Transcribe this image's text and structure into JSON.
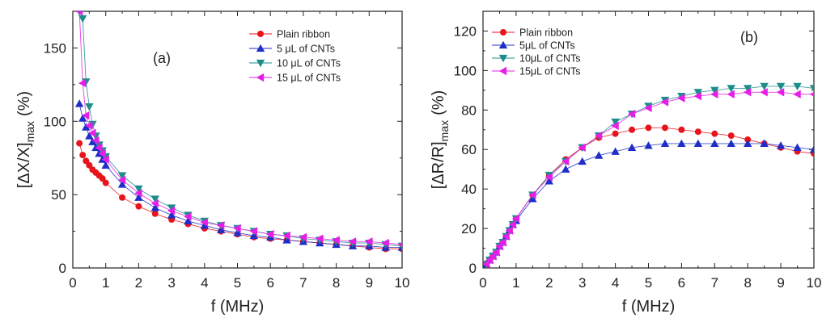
{
  "chart_data": [
    {
      "type": "scatter",
      "panel_label": "(a)",
      "xlabel": "f (MHz)",
      "ylabel_main": "[ΔX/X]",
      "ylabel_sub": "max",
      "ylabel_unit": "(%)",
      "xlim": [
        0,
        10
      ],
      "ylim": [
        0,
        175
      ],
      "xticks": [
        0,
        1,
        2,
        3,
        4,
        5,
        6,
        7,
        8,
        9,
        10
      ],
      "yticks": [
        0,
        50,
        100,
        150
      ],
      "grid": false,
      "legend_position": "top-right",
      "series": [
        {
          "name": "Plain ribbon",
          "marker": "circle",
          "color": "#e8141c",
          "x": [
            0.2,
            0.3,
            0.4,
            0.5,
            0.6,
            0.7,
            0.8,
            0.9,
            1.0,
            1.5,
            2.0,
            2.5,
            3.0,
            3.5,
            4.0,
            4.5,
            5.0,
            5.5,
            6.0,
            6.5,
            7.0,
            7.5,
            8.0,
            8.5,
            9.0,
            9.5,
            10.0
          ],
          "y": [
            85,
            77,
            73,
            70,
            67,
            65,
            63,
            61,
            58,
            48,
            42,
            37,
            33,
            30,
            27,
            25,
            23,
            21,
            20,
            19,
            18,
            17,
            16,
            15,
            14,
            13,
            13
          ]
        },
        {
          "name": "5 μL of CNTs",
          "marker": "triangle-up",
          "color": "#1f2ec8",
          "x": [
            0.2,
            0.3,
            0.4,
            0.5,
            0.6,
            0.7,
            0.8,
            0.9,
            1.0,
            1.5,
            2.0,
            2.5,
            3.0,
            3.5,
            4.0,
            4.5,
            5.0,
            5.5,
            6.0,
            6.5,
            7.0,
            7.5,
            8.0,
            8.5,
            9.0,
            9.5,
            10.0
          ],
          "y": [
            112,
            102,
            96,
            90,
            86,
            82,
            78,
            74,
            70,
            57,
            48,
            41,
            36,
            32,
            29,
            26,
            24,
            22,
            21,
            19,
            18,
            17,
            16,
            15,
            15,
            14,
            14
          ]
        },
        {
          "name": "10 μL of CNTs",
          "marker": "triangle-down",
          "color": "#1f8c8c",
          "x": [
            0.2,
            0.3,
            0.4,
            0.5,
            0.6,
            0.7,
            0.8,
            0.9,
            1.0,
            1.5,
            2.0,
            2.5,
            3.0,
            3.5,
            4.0,
            4.5,
            5.0,
            5.5,
            6.0,
            6.5,
            7.0,
            7.5,
            8.0,
            8.5,
            9.0,
            9.5,
            10.0
          ],
          "y": [
            175,
            170,
            127,
            110,
            98,
            90,
            84,
            80,
            76,
            63,
            54,
            47,
            41,
            36,
            32,
            29,
            27,
            25,
            23,
            22,
            20,
            19,
            18,
            17,
            17,
            16,
            15
          ]
        },
        {
          "name": "15 μL of CNTs",
          "marker": "triangle-left",
          "color": "#e61ee6",
          "x": [
            0.2,
            0.3,
            0.4,
            0.5,
            0.6,
            0.7,
            0.8,
            0.9,
            1.0,
            1.5,
            2.0,
            2.5,
            3.0,
            3.5,
            4.0,
            4.5,
            5.0,
            5.5,
            6.0,
            6.5,
            7.0,
            7.5,
            8.0,
            8.5,
            9.0,
            9.5,
            10.0
          ],
          "y": [
            175,
            126,
            104,
            97,
            92,
            87,
            82,
            78,
            74,
            60,
            51,
            44,
            39,
            35,
            31,
            29,
            27,
            25,
            23,
            22,
            21,
            20,
            19,
            18,
            18,
            17,
            16
          ]
        }
      ]
    },
    {
      "type": "scatter",
      "panel_label": "(b)",
      "xlabel": "f (MHz)",
      "ylabel_main": "[ΔR/R]",
      "ylabel_sub": "max",
      "ylabel_unit": "(%)",
      "xlim": [
        0,
        10
      ],
      "ylim": [
        0,
        130
      ],
      "xticks": [
        0,
        1,
        2,
        3,
        4,
        5,
        6,
        7,
        8,
        9,
        10
      ],
      "yticks": [
        0,
        20,
        40,
        60,
        80,
        100,
        120
      ],
      "grid": false,
      "legend_position": "top-left",
      "series": [
        {
          "name": "Plain ribbon",
          "marker": "circle",
          "color": "#e8141c",
          "x": [
            0.1,
            0.2,
            0.3,
            0.4,
            0.5,
            0.6,
            0.7,
            0.8,
            0.9,
            1.0,
            1.5,
            2.0,
            2.5,
            3.0,
            3.5,
            4.0,
            4.5,
            5.0,
            5.5,
            6.0,
            6.5,
            7.0,
            7.5,
            8.0,
            8.5,
            9.0,
            9.5,
            10.0
          ],
          "y": [
            2,
            4,
            6,
            8,
            11,
            13,
            16,
            19,
            22,
            25,
            37,
            47,
            55,
            61,
            66,
            68,
            70,
            71,
            71,
            70,
            69,
            68,
            67,
            65,
            63,
            61,
            59,
            58
          ]
        },
        {
          "name": "5μL of CNTs",
          "marker": "triangle-up",
          "color": "#1f2ec8",
          "x": [
            0.1,
            0.2,
            0.3,
            0.4,
            0.5,
            0.6,
            0.7,
            0.8,
            0.9,
            1.0,
            1.5,
            2.0,
            2.5,
            3.0,
            3.5,
            4.0,
            4.5,
            5.0,
            5.5,
            6.0,
            6.5,
            7.0,
            7.5,
            8.0,
            8.5,
            9.0,
            9.5,
            10.0
          ],
          "y": [
            2,
            4,
            6,
            8,
            11,
            13,
            16,
            19,
            22,
            24,
            35,
            44,
            50,
            54,
            57,
            59,
            61,
            62,
            63,
            63,
            63,
            63,
            63,
            63,
            63,
            62,
            61,
            60
          ]
        },
        {
          "name": "10μL of CNTs",
          "marker": "triangle-down",
          "color": "#1f8c8c",
          "x": [
            0.1,
            0.2,
            0.3,
            0.4,
            0.5,
            0.6,
            0.7,
            0.8,
            0.9,
            1.0,
            1.5,
            2.0,
            2.5,
            3.0,
            3.5,
            4.0,
            4.5,
            5.0,
            5.5,
            6.0,
            6.5,
            7.0,
            7.5,
            8.0,
            8.5,
            9.0,
            9.5,
            10.0
          ],
          "y": [
            2,
            4,
            6,
            8,
            11,
            13,
            16,
            19,
            22,
            25,
            37,
            47,
            54,
            61,
            67,
            74,
            78,
            82,
            85,
            87,
            89,
            90,
            91,
            91,
            92,
            92,
            92,
            91
          ]
        },
        {
          "name": "15μL of CNTs",
          "marker": "triangle-left",
          "color": "#e61ee6",
          "x": [
            0.1,
            0.2,
            0.3,
            0.4,
            0.5,
            0.6,
            0.7,
            0.8,
            0.9,
            1.0,
            1.5,
            2.0,
            2.5,
            3.0,
            3.5,
            4.0,
            4.5,
            5.0,
            5.5,
            6.0,
            6.5,
            7.0,
            7.5,
            8.0,
            8.5,
            9.0,
            9.5,
            10.0
          ],
          "y": [
            2,
            4,
            6,
            8,
            11,
            13,
            16,
            19,
            22,
            25,
            37,
            46,
            54,
            61,
            67,
            72,
            78,
            81,
            84,
            86,
            87,
            88,
            88,
            89,
            89,
            89,
            88,
            88
          ]
        }
      ]
    }
  ]
}
